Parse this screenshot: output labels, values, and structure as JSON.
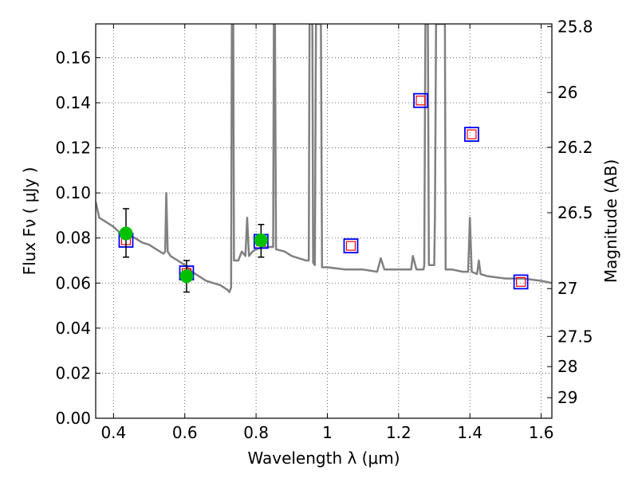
{
  "chart_data": {
    "type": "line",
    "title": "",
    "xlabel": "Wavelength  λ (μm)",
    "ylabel": "Flux  Fν  ( μJy )",
    "ylabel_right": "Magnitude (AB)",
    "xlim": [
      0.35,
      1.63
    ],
    "ylim": [
      0.0,
      0.175
    ],
    "grid": true,
    "x_ticks": [
      {
        "value": 0.4,
        "label": "0.4"
      },
      {
        "value": 0.6,
        "label": "0.6"
      },
      {
        "value": 0.8,
        "label": "0.8"
      },
      {
        "value": 1.0,
        "label": "1"
      },
      {
        "value": 1.2,
        "label": "1.2"
      },
      {
        "value": 1.4,
        "label": "1.4"
      },
      {
        "value": 1.6,
        "label": "1.6"
      }
    ],
    "y_ticks": [
      {
        "value": 0.0,
        "label": "0.00"
      },
      {
        "value": 0.02,
        "label": "0.02"
      },
      {
        "value": 0.04,
        "label": "0.04"
      },
      {
        "value": 0.06,
        "label": "0.06"
      },
      {
        "value": 0.08,
        "label": "0.08"
      },
      {
        "value": 0.1,
        "label": "0.10"
      },
      {
        "value": 0.12,
        "label": "0.12"
      },
      {
        "value": 0.14,
        "label": "0.14"
      },
      {
        "value": 0.16,
        "label": "0.16"
      }
    ],
    "right_ticks": [
      {
        "mag": 25.8,
        "label": "25.8"
      },
      {
        "mag": 26.0,
        "label": "26"
      },
      {
        "mag": 26.2,
        "label": "26.2"
      },
      {
        "mag": 26.5,
        "label": "26.5"
      },
      {
        "mag": 27.0,
        "label": "27"
      },
      {
        "mag": 27.5,
        "label": "27.5"
      },
      {
        "mag": 28.0,
        "label": "28"
      },
      {
        "mag": 29.0,
        "label": "29"
      }
    ],
    "colors": {
      "template": "#808080",
      "observed": "#00c000",
      "model_box": "#0000ff",
      "model_inner": "#ff0000",
      "errorbar": "#000000",
      "grid": "#444444"
    },
    "template_spectrum": {
      "name": "",
      "points": [
        [
          0.35,
          0.096
        ],
        [
          0.36,
          0.089
        ],
        [
          0.38,
          0.087
        ],
        [
          0.4,
          0.085
        ],
        [
          0.42,
          0.082
        ],
        [
          0.44,
          0.081
        ],
        [
          0.46,
          0.08
        ],
        [
          0.48,
          0.078
        ],
        [
          0.5,
          0.077
        ],
        [
          0.52,
          0.075
        ],
        [
          0.54,
          0.073
        ],
        [
          0.545,
          0.074
        ],
        [
          0.548,
          0.1
        ],
        [
          0.552,
          0.074
        ],
        [
          0.56,
          0.072
        ],
        [
          0.58,
          0.07
        ],
        [
          0.6,
          0.068
        ],
        [
          0.62,
          0.065
        ],
        [
          0.64,
          0.063
        ],
        [
          0.66,
          0.061
        ],
        [
          0.68,
          0.06
        ],
        [
          0.7,
          0.059
        ],
        [
          0.72,
          0.057
        ],
        [
          0.725,
          0.056
        ],
        [
          0.73,
          0.058
        ],
        [
          0.732,
          0.175
        ],
        [
          0.736,
          0.175
        ],
        [
          0.738,
          0.07
        ],
        [
          0.75,
          0.07
        ],
        [
          0.76,
          0.074
        ],
        [
          0.77,
          0.072
        ],
        [
          0.775,
          0.089
        ],
        [
          0.78,
          0.072
        ],
        [
          0.79,
          0.074
        ],
        [
          0.8,
          0.075
        ],
        [
          0.82,
          0.076
        ],
        [
          0.84,
          0.076
        ],
        [
          0.848,
          0.076
        ],
        [
          0.85,
          0.175
        ],
        [
          0.853,
          0.175
        ],
        [
          0.856,
          0.075
        ],
        [
          0.88,
          0.074
        ],
        [
          0.9,
          0.072
        ],
        [
          0.92,
          0.071
        ],
        [
          0.94,
          0.07
        ],
        [
          0.948,
          0.07
        ],
        [
          0.95,
          0.175
        ],
        [
          0.958,
          0.175
        ],
        [
          0.96,
          0.069
        ],
        [
          0.965,
          0.068
        ],
        [
          0.968,
          0.175
        ],
        [
          0.98,
          0.175
        ],
        [
          0.982,
          0.175
        ],
        [
          0.985,
          0.067
        ],
        [
          1.0,
          0.067
        ],
        [
          1.05,
          0.066
        ],
        [
          1.1,
          0.066
        ],
        [
          1.14,
          0.065
        ],
        [
          1.15,
          0.071
        ],
        [
          1.16,
          0.066
        ],
        [
          1.2,
          0.066
        ],
        [
          1.235,
          0.066
        ],
        [
          1.24,
          0.072
        ],
        [
          1.25,
          0.066
        ],
        [
          1.27,
          0.066
        ],
        [
          1.272,
          0.068
        ],
        [
          1.275,
          0.175
        ],
        [
          1.282,
          0.175
        ],
        [
          1.285,
          0.068
        ],
        [
          1.3,
          0.068
        ],
        [
          1.302,
          0.09
        ],
        [
          1.305,
          0.175
        ],
        [
          1.31,
          0.175
        ],
        [
          1.33,
          0.175
        ],
        [
          1.332,
          0.066
        ],
        [
          1.35,
          0.066
        ],
        [
          1.38,
          0.065
        ],
        [
          1.395,
          0.065
        ],
        [
          1.4,
          0.089
        ],
        [
          1.405,
          0.065
        ],
        [
          1.42,
          0.064
        ],
        [
          1.425,
          0.07
        ],
        [
          1.43,
          0.064
        ],
        [
          1.45,
          0.063
        ],
        [
          1.5,
          0.062
        ],
        [
          1.55,
          0.062
        ],
        [
          1.6,
          0.061
        ],
        [
          1.63,
          0.06
        ]
      ]
    },
    "observed_photometry": {
      "name": "",
      "points": [
        {
          "x": 0.435,
          "y": 0.082,
          "yerr_low": 0.0105,
          "yerr_high": 0.011
        },
        {
          "x": 0.605,
          "y": 0.063,
          "yerr_low": 0.007,
          "yerr_high": 0.007
        },
        {
          "x": 0.814,
          "y": 0.079,
          "yerr_low": 0.0075,
          "yerr_high": 0.007
        }
      ]
    },
    "model_photometry": {
      "name": "",
      "points": [
        {
          "x": 0.435,
          "y": 0.079
        },
        {
          "x": 0.605,
          "y": 0.0645
        },
        {
          "x": 0.814,
          "y": 0.0785
        },
        {
          "x": 1.066,
          "y": 0.0765
        },
        {
          "x": 1.262,
          "y": 0.141
        },
        {
          "x": 1.405,
          "y": 0.126
        },
        {
          "x": 1.543,
          "y": 0.0605
        }
      ]
    }
  }
}
